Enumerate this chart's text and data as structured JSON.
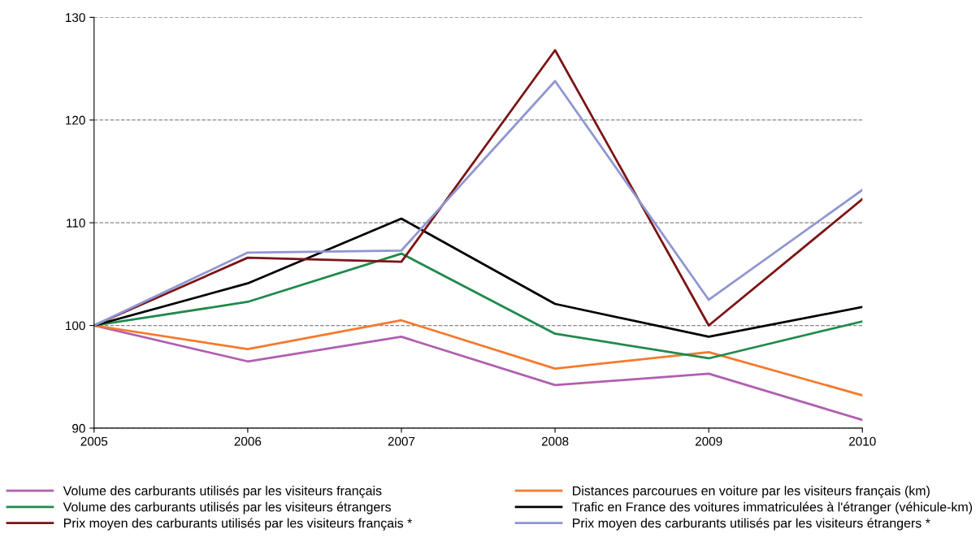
{
  "chart_data": {
    "type": "line",
    "x": [
      2005,
      2006,
      2007,
      2008,
      2009,
      2010
    ],
    "xlim": [
      2005,
      2010
    ],
    "xticks": [
      2005,
      2006,
      2007,
      2008,
      2009,
      2010
    ],
    "ylim": [
      90,
      130
    ],
    "yticks": [
      90,
      100,
      110,
      120,
      130
    ],
    "grid": "y",
    "legend": "bottom",
    "marker": "none",
    "line_style": "solid",
    "series": [
      {
        "name": "Volume des carburants utilisés par les visiteurs français",
        "color": "#b05fb0",
        "values": [
          100,
          96.5,
          98.9,
          94.2,
          95.3,
          90.8
        ]
      },
      {
        "name": "Distances parcourues en voiture par les visiteurs français (km)",
        "color": "#f47a2e",
        "values": [
          100,
          97.7,
          100.5,
          95.8,
          97.4,
          93.2
        ]
      },
      {
        "name": "Volume des carburants utilisés par les visiteurs étrangers",
        "color": "#1f8a4c",
        "values": [
          100,
          102.3,
          107.0,
          99.2,
          96.8,
          100.4
        ]
      },
      {
        "name": "Trafic en France des voitures immatriculées à l'étranger (véhicule-km)",
        "color": "#000000",
        "values": [
          100,
          104.1,
          110.4,
          102.1,
          98.9,
          101.8
        ]
      },
      {
        "name": "Prix moyen des carburants utilisés par les visiteurs français *",
        "color": "#7b1416",
        "values": [
          100,
          106.6,
          106.2,
          126.8,
          100.0,
          112.3
        ]
      },
      {
        "name": "Prix moyen des carburants utilisés par les visiteurs étrangers *",
        "color": "#8f96d0",
        "values": [
          100,
          107.1,
          107.3,
          123.8,
          102.5,
          113.2
        ]
      }
    ]
  }
}
